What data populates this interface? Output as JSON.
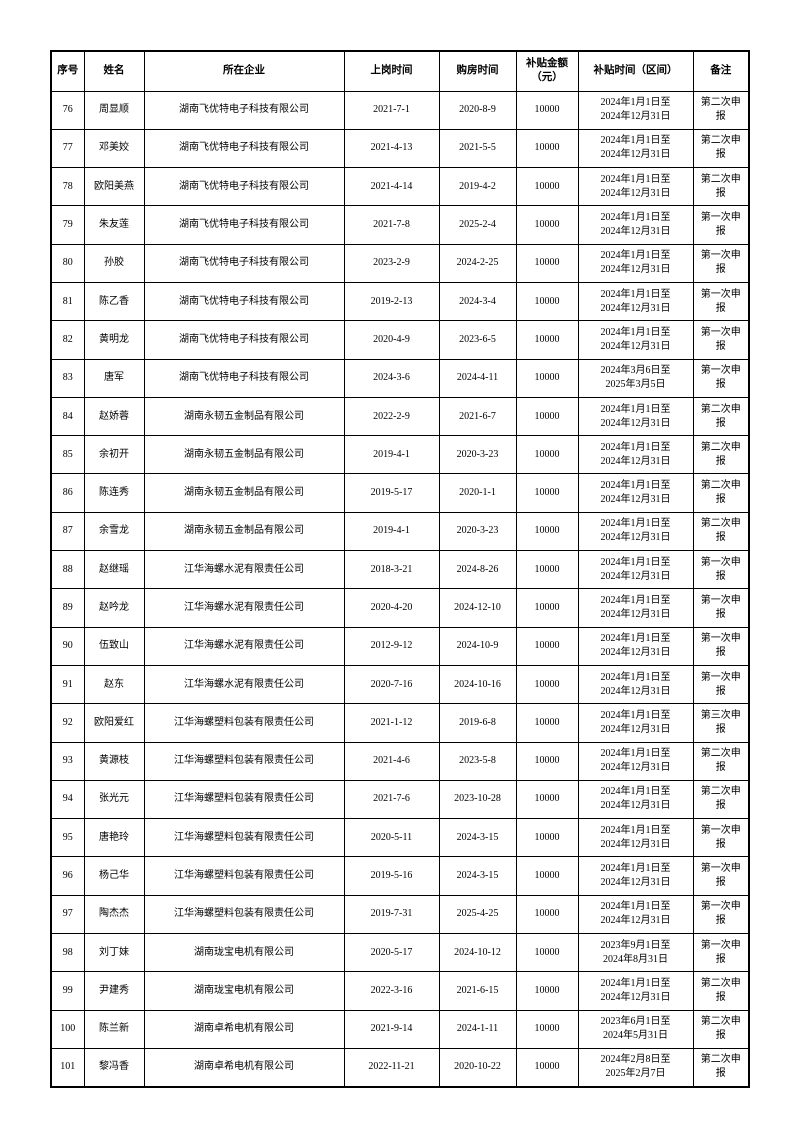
{
  "colors": {
    "page_background": "#ffffff",
    "border": "#000000",
    "text": "#000000"
  },
  "table": {
    "column_keys": [
      "seq",
      "name",
      "company",
      "start-date",
      "purchase-date",
      "amount",
      "period",
      "remark"
    ],
    "headers": [
      "序号",
      "姓名",
      "所在企业",
      "上岗时间",
      "购房时间",
      "补贴金额\n（元）",
      "补贴时间（区间）",
      "备注"
    ],
    "rows": [
      [
        "76",
        "周显顺",
        "湖南飞优特电子科技有限公司",
        "2021-7-1",
        "2020-8-9",
        "10000",
        "2024年1月1日至\n2024年12月31日",
        "第二次申\n报"
      ],
      [
        "77",
        "邓美姣",
        "湖南飞优特电子科技有限公司",
        "2021-4-13",
        "2021-5-5",
        "10000",
        "2024年1月1日至\n2024年12月31日",
        "第二次申\n报"
      ],
      [
        "78",
        "欧阳美燕",
        "湖南飞优特电子科技有限公司",
        "2021-4-14",
        "2019-4-2",
        "10000",
        "2024年1月1日至\n2024年12月31日",
        "第二次申\n报"
      ],
      [
        "79",
        "朱友莲",
        "湖南飞优特电子科技有限公司",
        "2021-7-8",
        "2025-2-4",
        "10000",
        "2024年1月1日至\n2024年12月31日",
        "第一次申\n报"
      ],
      [
        "80",
        "孙胶",
        "湖南飞优特电子科技有限公司",
        "2023-2-9",
        "2024-2-25",
        "10000",
        "2024年1月1日至\n2024年12月31日",
        "第一次申\n报"
      ],
      [
        "81",
        "陈乙香",
        "湖南飞优特电子科技有限公司",
        "2019-2-13",
        "2024-3-4",
        "10000",
        "2024年1月1日至\n2024年12月31日",
        "第一次申\n报"
      ],
      [
        "82",
        "黄明龙",
        "湖南飞优特电子科技有限公司",
        "2020-4-9",
        "2023-6-5",
        "10000",
        "2024年1月1日至\n2024年12月31日",
        "第一次申\n报"
      ],
      [
        "83",
        "唐军",
        "湖南飞优特电子科技有限公司",
        "2024-3-6",
        "2024-4-11",
        "10000",
        "2024年3月6日至\n2025年3月5日",
        "第一次申\n报"
      ],
      [
        "84",
        "赵娇蓉",
        "湖南永韧五金制品有限公司",
        "2022-2-9",
        "2021-6-7",
        "10000",
        "2024年1月1日至\n2024年12月31日",
        "第二次申\n报"
      ],
      [
        "85",
        "余初开",
        "湖南永韧五金制品有限公司",
        "2019-4-1",
        "2020-3-23",
        "10000",
        "2024年1月1日至\n2024年12月31日",
        "第二次申\n报"
      ],
      [
        "86",
        "陈连秀",
        "湖南永韧五金制品有限公司",
        "2019-5-17",
        "2020-1-1",
        "10000",
        "2024年1月1日至\n2024年12月31日",
        "第二次申\n报"
      ],
      [
        "87",
        "余雪龙",
        "湖南永韧五金制品有限公司",
        "2019-4-1",
        "2020-3-23",
        "10000",
        "2024年1月1日至\n2024年12月31日",
        "第二次申\n报"
      ],
      [
        "88",
        "赵继瑶",
        "江华海螺水泥有限责任公司",
        "2018-3-21",
        "2024-8-26",
        "10000",
        "2024年1月1日至\n2024年12月31日",
        "第一次申\n报"
      ],
      [
        "89",
        "赵吟龙",
        "江华海螺水泥有限责任公司",
        "2020-4-20",
        "2024-12-10",
        "10000",
        "2024年1月1日至\n2024年12月31日",
        "第一次申\n报"
      ],
      [
        "90",
        "伍致山",
        "江华海螺水泥有限责任公司",
        "2012-9-12",
        "2024-10-9",
        "10000",
        "2024年1月1日至\n2024年12月31日",
        "第一次申\n报"
      ],
      [
        "91",
        "赵东",
        "江华海螺水泥有限责任公司",
        "2020-7-16",
        "2024-10-16",
        "10000",
        "2024年1月1日至\n2024年12月31日",
        "第一次申\n报"
      ],
      [
        "92",
        "欧阳爱红",
        "江华海螺塑料包装有限责任公司",
        "2021-1-12",
        "2019-6-8",
        "10000",
        "2024年1月1日至\n2024年12月31日",
        "第三次申\n报"
      ],
      [
        "93",
        "黄源枝",
        "江华海螺塑料包装有限责任公司",
        "2021-4-6",
        "2023-5-8",
        "10000",
        "2024年1月1日至\n2024年12月31日",
        "第二次申\n报"
      ],
      [
        "94",
        "张光元",
        "江华海螺塑料包装有限责任公司",
        "2021-7-6",
        "2023-10-28",
        "10000",
        "2024年1月1日至\n2024年12月31日",
        "第二次申\n报"
      ],
      [
        "95",
        "唐艳玲",
        "江华海螺塑料包装有限责任公司",
        "2020-5-11",
        "2024-3-15",
        "10000",
        "2024年1月1日至\n2024年12月31日",
        "第一次申\n报"
      ],
      [
        "96",
        "杨己华",
        "江华海螺塑料包装有限责任公司",
        "2019-5-16",
        "2024-3-15",
        "10000",
        "2024年1月1日至\n2024年12月31日",
        "第一次申\n报"
      ],
      [
        "97",
        "陶杰杰",
        "江华海螺塑料包装有限责任公司",
        "2019-7-31",
        "2025-4-25",
        "10000",
        "2024年1月1日至\n2024年12月31日",
        "第一次申\n报"
      ],
      [
        "98",
        "刘丁妹",
        "湖南珑宝电机有限公司",
        "2020-5-17",
        "2024-10-12",
        "10000",
        "2023年9月1日至\n2024年8月31日",
        "第一次申\n报"
      ],
      [
        "99",
        "尹建秀",
        "湖南珑宝电机有限公司",
        "2022-3-16",
        "2021-6-15",
        "10000",
        "2024年1月1日至\n2024年12月31日",
        "第二次申\n报"
      ],
      [
        "100",
        "陈兰新",
        "湖南卓希电机有限公司",
        "2021-9-14",
        "2024-1-11",
        "10000",
        "2023年6月1日至\n2024年5月31日",
        "第二次申\n报"
      ],
      [
        "101",
        "黎冯香",
        "湖南卓希电机有限公司",
        "2022-11-21",
        "2020-10-22",
        "10000",
        "2024年2月8日至\n2025年2月7日",
        "第二次申\n报"
      ]
    ]
  }
}
